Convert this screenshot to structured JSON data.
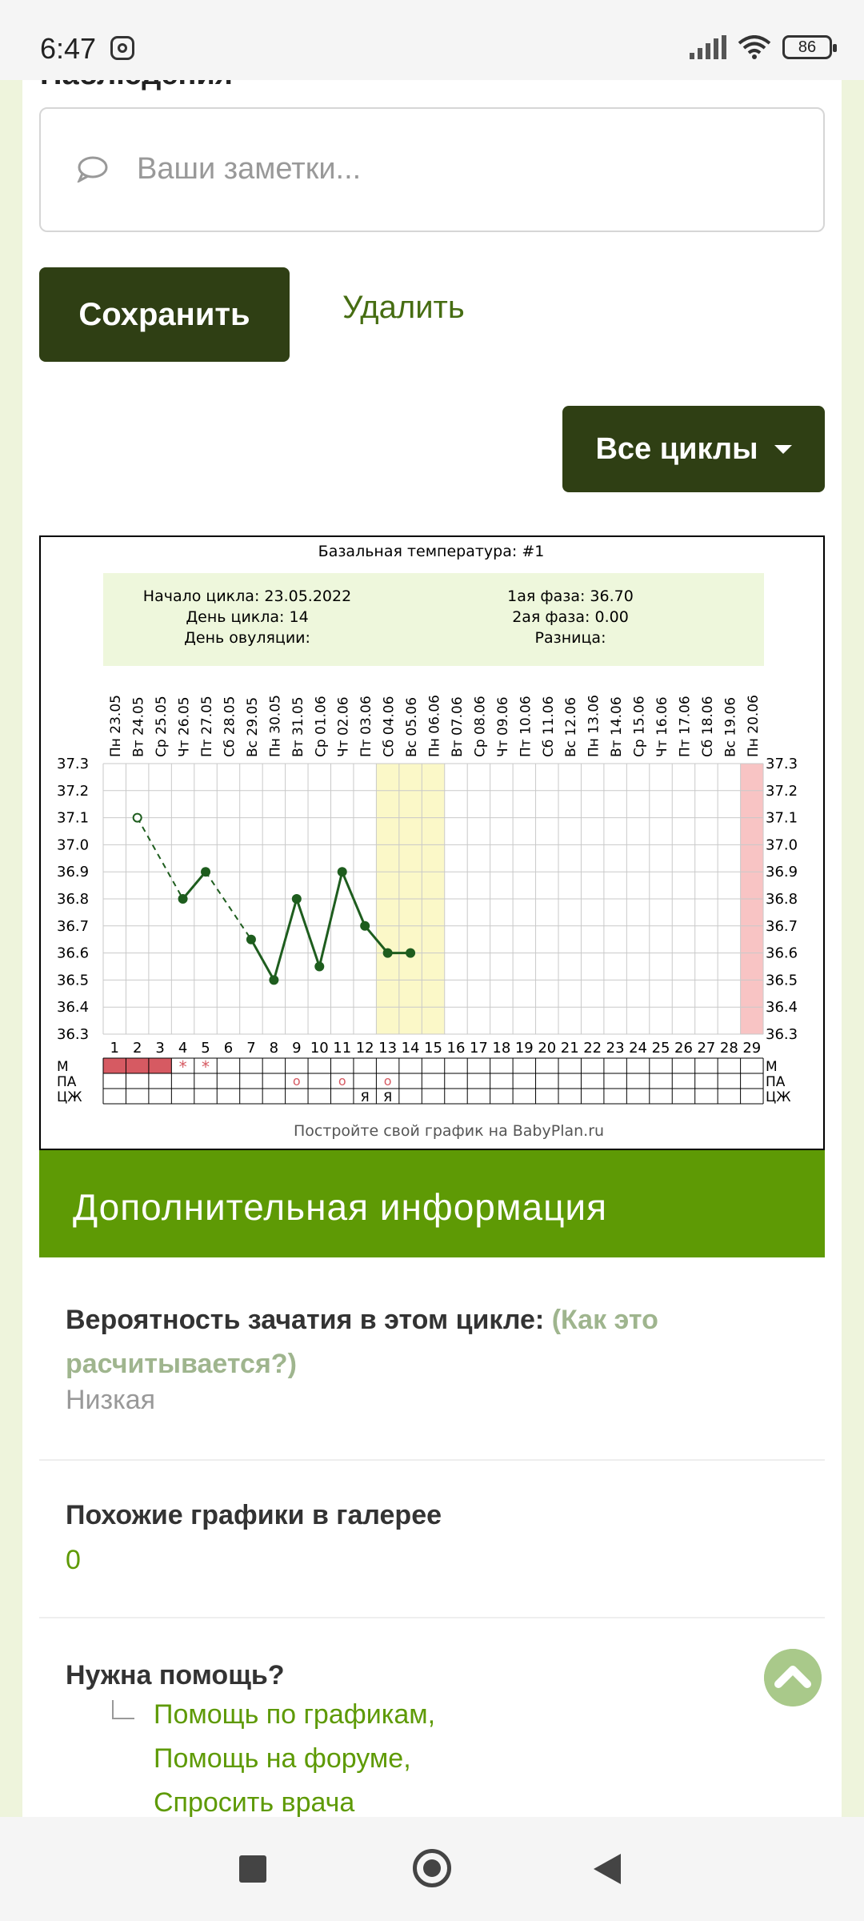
{
  "status_bar": {
    "time": "6:47",
    "battery": "86"
  },
  "section_title_cut": "Наблюдения",
  "notes": {
    "placeholder": "Ваши заметки..."
  },
  "buttons": {
    "save": "Сохранить",
    "delete": "Удалить",
    "all_cycles": "Все циклы"
  },
  "chart_data": {
    "type": "line",
    "title": "Базальная температура: #1",
    "summary": {
      "cycle_start": "Начало цикла: 23.05.2022",
      "cycle_day": "День цикла: 14",
      "ovulation_day": "День овуляции:",
      "phase1": "1ая фаза: 36.70",
      "phase2": "2ая фаза: 0.00",
      "difference": "Разница:"
    },
    "dates": [
      "Пн 23.05",
      "Вт 24.05",
      "Ср 25.05",
      "Чт 26.05",
      "Пт 27.05",
      "Сб 28.05",
      "Вс 29.05",
      "Пн 30.05",
      "Вт 31.05",
      "Ср 01.06",
      "Чт 02.06",
      "Пт 03.06",
      "Сб 04.06",
      "Вс 05.06",
      "Пн 06.06",
      "Вт 07.06",
      "Ср 08.06",
      "Чт 09.06",
      "Пт 10.06",
      "Сб 11.06",
      "Вс 12.06",
      "Пн 13.06",
      "Вт 14.06",
      "Ср 15.06",
      "Чт 16.06",
      "Пт 17.06",
      "Сб 18.06",
      "Вс 19.06",
      "Пн 20.06"
    ],
    "days": [
      1,
      2,
      3,
      4,
      5,
      6,
      7,
      8,
      9,
      10,
      11,
      12,
      13,
      14,
      15,
      16,
      17,
      18,
      19,
      20,
      21,
      22,
      23,
      24,
      25,
      26,
      27,
      28,
      29
    ],
    "ylim": [
      36.3,
      37.3
    ],
    "y_ticks": [
      "37.3",
      "37.2",
      "37.1",
      "37.0",
      "36.9",
      "36.8",
      "36.7",
      "36.6",
      "36.5",
      "36.4",
      "36.3"
    ],
    "temps": [
      {
        "day": 2,
        "t": 37.1
      },
      {
        "day": 4,
        "t": 36.8
      },
      {
        "day": 5,
        "t": 36.9
      },
      {
        "day": 7,
        "t": 36.65
      },
      {
        "day": 8,
        "t": 36.5
      },
      {
        "day": 9,
        "t": 36.8
      },
      {
        "day": 10,
        "t": 36.55
      },
      {
        "day": 11,
        "t": 36.9
      },
      {
        "day": 12,
        "t": 36.7
      },
      {
        "day": 13,
        "t": 36.6
      },
      {
        "day": 14,
        "t": 36.6
      }
    ],
    "highlight_days": [
      13,
      14,
      15
    ],
    "today_day": 29,
    "row_labels": [
      "М",
      "ПА",
      "ЦЖ"
    ],
    "menstruation_days": [
      1,
      2,
      3
    ],
    "star_days": [
      4,
      5
    ],
    "pa_days": [
      9,
      11,
      13
    ],
    "pa_mark": "o",
    "cz_days": [
      12,
      13
    ],
    "cz_mark": "Я",
    "star_mark": "*",
    "footer": "Постройте свой график на BabyPlan.ru"
  },
  "info": {
    "header": "Дополнительная информация",
    "probability_label": "Вероятность зачатия в этом цикле:",
    "probability_link": "(Как это расчитывается?)",
    "probability_value": "Низкая",
    "similar_label": "Похожие графики в галерее",
    "similar_value": "0",
    "help_label": "Нужна помощь?",
    "help_links": [
      "Помощь по графикам,",
      "Помощь на форуме,",
      "Спросить врача"
    ]
  }
}
